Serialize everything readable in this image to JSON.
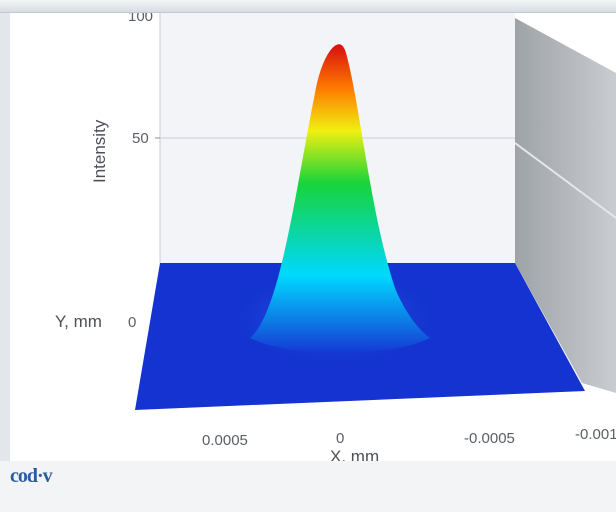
{
  "window": {
    "title": ""
  },
  "footer": {
    "logo_text": "cod·v",
    "caption": ""
  },
  "chart_data": {
    "type": "surface",
    "title": "",
    "xlabel": "X, mm",
    "ylabel": "Y, mm",
    "zlabel": "Intensity",
    "x_ticks": [
      "0.0005",
      "0",
      "-0.0005",
      "-0.001"
    ],
    "z_ticks": [
      "100",
      "50"
    ],
    "y_ticks": [
      "0"
    ],
    "x_range": [
      0.0007,
      -0.001
    ],
    "z_range": [
      0,
      100
    ],
    "peak": {
      "x": 0.0,
      "y": 0.0,
      "z": 95
    },
    "colormap": [
      "#1133d6",
      "#00e4ff",
      "#1fe03a",
      "#f6ef14",
      "#ff7a00",
      "#d81010"
    ],
    "floor_color": "#1433d0",
    "grid": true
  }
}
